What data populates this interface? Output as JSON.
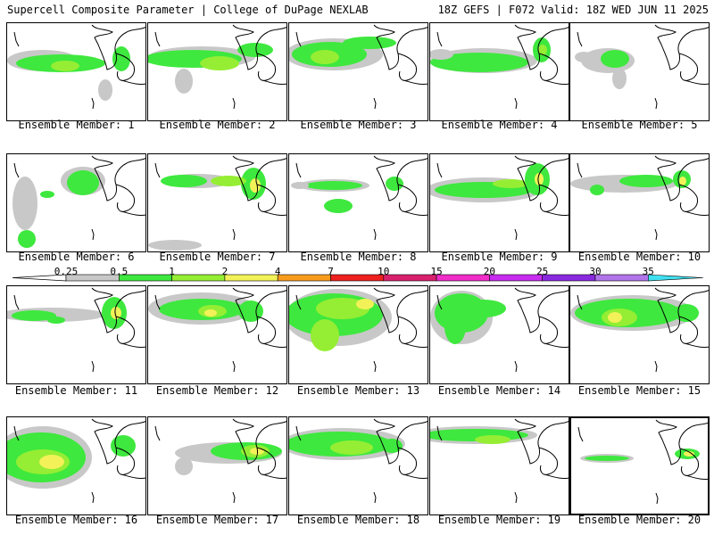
{
  "header": {
    "left": "Supercell Composite Parameter | College of DuPage NEXLAB",
    "right": "18Z GEFS | F072 Valid: 18Z WED JUN 11 2025"
  },
  "colorbar": {
    "levels": [
      "0.25",
      "0.5",
      "1",
      "2",
      "4",
      "7",
      "10",
      "15",
      "20",
      "25",
      "30",
      "35"
    ],
    "colors": [
      "#c8c8c8",
      "#3ee83e",
      "#95ee33",
      "#f2f258",
      "#f99c1c",
      "#ee2020",
      "#d8206e",
      "#f02cc9",
      "#c82cf0",
      "#8a2ae0",
      "#b175ea",
      "#40e0f0"
    ]
  },
  "panels": [
    {
      "caption": "Ensemble Member: 1"
    },
    {
      "caption": "Ensemble Member: 2"
    },
    {
      "caption": "Ensemble Member: 3"
    },
    {
      "caption": "Ensemble Member: 4"
    },
    {
      "caption": "Ensemble Member: 5"
    },
    {
      "caption": "Ensemble Member: 6"
    },
    {
      "caption": "Ensemble Member: 7"
    },
    {
      "caption": "Ensemble Member: 8"
    },
    {
      "caption": "Ensemble Member: 9"
    },
    {
      "caption": "Ensemble Member: 10"
    },
    {
      "caption": "Ensemble Member: 11"
    },
    {
      "caption": "Ensemble Member: 12"
    },
    {
      "caption": "Ensemble Member: 13"
    },
    {
      "caption": "Ensemble Member: 14"
    },
    {
      "caption": "Ensemble Member: 15"
    },
    {
      "caption": "Ensemble Member: 16"
    },
    {
      "caption": "Ensemble Member: 17"
    },
    {
      "caption": "Ensemble Member: 18"
    },
    {
      "caption": "Ensemble Member: 19"
    },
    {
      "caption": "Ensemble Member: 20"
    }
  ],
  "selected_member": 20
}
